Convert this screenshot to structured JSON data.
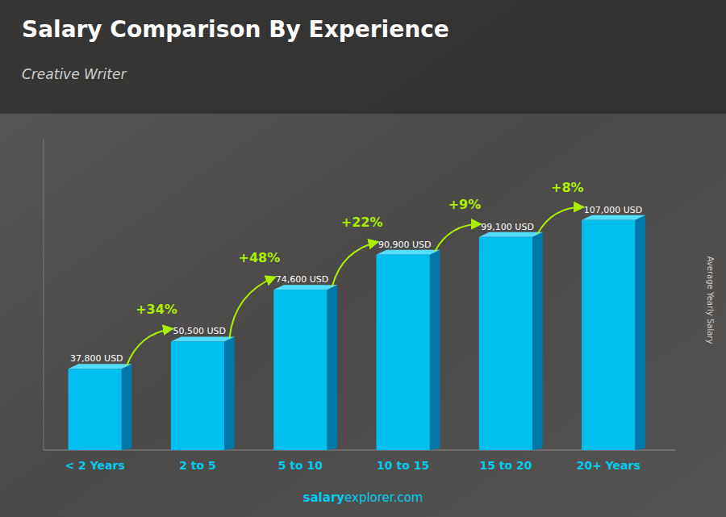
{
  "chart_data": {
    "type": "bar",
    "title": "Salary Comparison By Experience",
    "subtitle": "Creative Writer",
    "ylabel": "Average Yearly Salary",
    "categories": [
      "< 2 Years",
      "2 to 5",
      "5 to 10",
      "10 to 15",
      "15 to 20",
      "20+ Years"
    ],
    "values": [
      37800,
      50500,
      74600,
      90900,
      99100,
      107000
    ],
    "value_labels": [
      "37,800 USD",
      "50,500 USD",
      "74,600 USD",
      "90,900 USD",
      "99,100 USD",
      "107,000 USD"
    ],
    "data_labels": true,
    "annotations": [
      "+34%",
      "+48%",
      "+22%",
      "+9%",
      "+8%"
    ],
    "watermark": [
      "salary",
      "explorer.com"
    ],
    "color": "#00BFEE",
    "ylim": [
      0,
      144450
    ],
    "tick_labels": "x",
    "grid": false
  }
}
